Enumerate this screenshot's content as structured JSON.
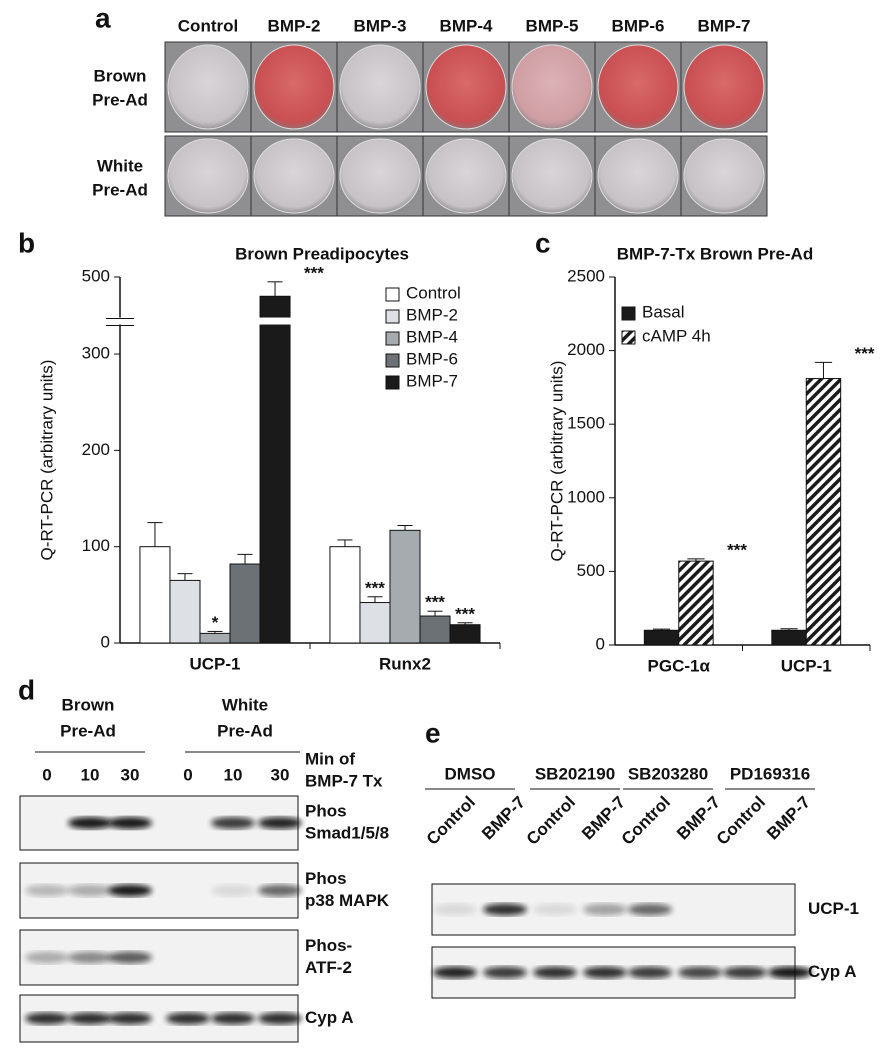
{
  "panel_a": {
    "panel_label": "a",
    "columns": [
      "Control",
      "BMP-2",
      "BMP-3",
      "BMP-4",
      "BMP-5",
      "BMP-6",
      "BMP-7"
    ],
    "rows": [
      [
        "Brown",
        "Pre-Ad"
      ],
      [
        "White",
        "Pre-Ad"
      ]
    ]
  },
  "chart_data": [
    {
      "type": "bar",
      "panel_label": "b",
      "title": "Brown Preadipocytes",
      "y_label": "Q-RT-PCR (arbitrary units)",
      "categories": [
        "UCP-1",
        "Runx2"
      ],
      "series": [
        {
          "name": "Control",
          "color": "#ffffff",
          "values": [
            100,
            100
          ],
          "errors": [
            25,
            7
          ],
          "labels": [
            null,
            null
          ]
        },
        {
          "name": "BMP-2",
          "color": "#dde0e4",
          "values": [
            65,
            42
          ],
          "errors": [
            7,
            6
          ],
          "labels": [
            null,
            "***"
          ]
        },
        {
          "name": "BMP-4",
          "color": "#a6abaf",
          "values": [
            10,
            117
          ],
          "errors": [
            2,
            5
          ],
          "labels": [
            "*",
            null
          ]
        },
        {
          "name": "BMP-6",
          "color": "#6b7175",
          "values": [
            82,
            28
          ],
          "errors": [
            10,
            5
          ],
          "labels": [
            null,
            "***"
          ]
        },
        {
          "name": "BMP-7",
          "color": "#1a1a1a",
          "values": [
            480,
            19
          ],
          "errors": [
            15,
            2
          ],
          "labels": [
            "***",
            "***"
          ]
        }
      ],
      "ylim": [
        0,
        500
      ],
      "yticks": [
        0,
        100,
        200,
        300,
        500
      ],
      "axis_break": [
        340,
        460
      ],
      "legend": "upper right"
    },
    {
      "type": "bar",
      "panel_label": "c",
      "title": "BMP-7-Tx Brown Pre-Ad",
      "y_label": "Q-RT-PCR (arbitrary units)",
      "categories": [
        "PGC-1α",
        "UCP-1"
      ],
      "series": [
        {
          "name": "Basal",
          "color": "#1a1a1a",
          "values": [
            100,
            100
          ],
          "errors": [
            8,
            10
          ],
          "labels": [
            null,
            null
          ]
        },
        {
          "name": "cAMP 4h",
          "color": "#1a1a1a",
          "hatch": true,
          "values": [
            570,
            1810
          ],
          "errors": [
            15,
            110
          ],
          "labels": [
            "***",
            "***"
          ]
        }
      ],
      "ylim": [
        0,
        2500
      ],
      "yticks": [
        0,
        500,
        1000,
        1500,
        2000,
        2500
      ],
      "legend": "upper left"
    }
  ],
  "panel_d": {
    "panel_label": "d",
    "groups": [
      [
        "Brown",
        "Pre-Ad"
      ],
      [
        "White",
        "Pre-Ad"
      ]
    ],
    "time_caption": [
      "Min of",
      "BMP-7 Tx"
    ],
    "times": [
      "0",
      "10",
      "30",
      "0",
      "10",
      "30"
    ],
    "blots": [
      [
        "Phos",
        "Smad1/5/8"
      ],
      [
        "Phos",
        "p38 MAPK"
      ],
      [
        "Phos-",
        "ATF-2"
      ],
      [
        "Cyp A"
      ]
    ]
  },
  "panel_e": {
    "panel_label": "e",
    "groups": [
      "DMSO",
      "SB202190",
      "SB203280",
      "PD169316"
    ],
    "lanes": [
      "Control",
      "BMP-7",
      "Control",
      "BMP-7",
      "Control",
      "BMP-7",
      "Control",
      "BMP-7"
    ],
    "blots": [
      "UCP-1",
      "Cyp A"
    ]
  }
}
